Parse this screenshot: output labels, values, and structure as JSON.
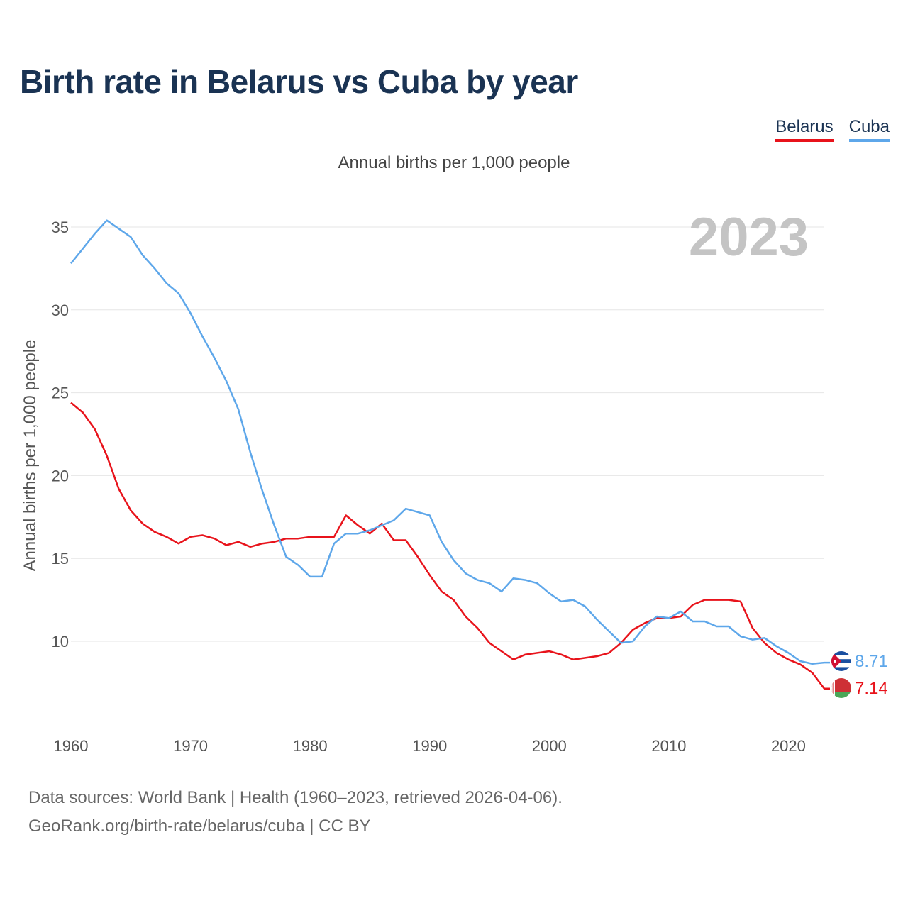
{
  "title": "Birth rate in Belarus vs Cuba by year",
  "subtitle": "Annual births per 1,000 people",
  "footer": {
    "line1": "Data sources: World Bank | Health (1960–2023, retrieved 2026-04-06).",
    "line2": "GeoRank.org/birth-rate/belarus/cuba | CC BY"
  },
  "chart_data": {
    "type": "line",
    "title": "Birth rate in Belarus vs Cuba by year",
    "subtitle": "Annual births per 1,000 people",
    "xlabel": "",
    "ylabel": "Annual births per 1,000 people",
    "year_label": "2023",
    "xlim": [
      1960,
      2023
    ],
    "ylim": [
      5.5,
      37
    ],
    "xticks": [
      1960,
      1970,
      1980,
      1990,
      2000,
      2010,
      2020
    ],
    "yticks": [
      10,
      15,
      20,
      25,
      30,
      35
    ],
    "grid": true,
    "legend_position": "top-right",
    "x": [
      1960,
      1961,
      1962,
      1963,
      1964,
      1965,
      1966,
      1967,
      1968,
      1969,
      1970,
      1971,
      1972,
      1973,
      1974,
      1975,
      1976,
      1977,
      1978,
      1979,
      1980,
      1981,
      1982,
      1983,
      1984,
      1985,
      1986,
      1987,
      1988,
      1989,
      1990,
      1991,
      1992,
      1993,
      1994,
      1995,
      1996,
      1997,
      1998,
      1999,
      2000,
      2001,
      2002,
      2003,
      2004,
      2005,
      2006,
      2007,
      2008,
      2009,
      2010,
      2011,
      2012,
      2013,
      2014,
      2015,
      2016,
      2017,
      2018,
      2019,
      2020,
      2021,
      2022,
      2023
    ],
    "series": [
      {
        "name": "Belarus",
        "color": "#e8131b",
        "end_label": "7.14",
        "flag": "belarus-flag",
        "values": [
          24.4,
          23.8,
          22.8,
          21.2,
          19.2,
          17.9,
          17.1,
          16.6,
          16.3,
          15.9,
          16.3,
          16.4,
          16.2,
          15.8,
          16.0,
          15.7,
          15.9,
          16.0,
          16.2,
          16.2,
          16.3,
          16.3,
          16.3,
          17.6,
          17.0,
          16.5,
          17.1,
          16.1,
          16.1,
          15.1,
          14.0,
          13.0,
          12.5,
          11.5,
          10.8,
          9.9,
          9.4,
          8.9,
          9.2,
          9.3,
          9.4,
          9.2,
          8.9,
          9.0,
          9.1,
          9.3,
          9.9,
          10.7,
          11.1,
          11.4,
          11.4,
          11.5,
          12.2,
          12.5,
          12.5,
          12.5,
          12.4,
          10.8,
          9.9,
          9.3,
          8.9,
          8.6,
          8.1,
          7.14
        ]
      },
      {
        "name": "Cuba",
        "color": "#5ea7ea",
        "end_label": "8.71",
        "flag": "cuba-flag",
        "values": [
          32.8,
          33.7,
          34.6,
          35.4,
          34.9,
          34.4,
          33.3,
          32.5,
          31.6,
          31.0,
          29.8,
          28.4,
          27.1,
          25.7,
          24.0,
          21.4,
          19.1,
          17.0,
          15.1,
          14.6,
          13.9,
          13.9,
          15.9,
          16.5,
          16.5,
          16.7,
          17.0,
          17.3,
          18.0,
          17.8,
          17.6,
          16.0,
          14.9,
          14.1,
          13.7,
          13.5,
          13.0,
          13.8,
          13.7,
          13.5,
          12.9,
          12.4,
          12.5,
          12.1,
          11.3,
          10.6,
          9.9,
          10.0,
          10.9,
          11.5,
          11.4,
          11.8,
          11.2,
          11.2,
          10.9,
          10.9,
          10.3,
          10.1,
          10.2,
          9.7,
          9.3,
          8.8,
          8.64,
          8.71
        ]
      }
    ]
  }
}
